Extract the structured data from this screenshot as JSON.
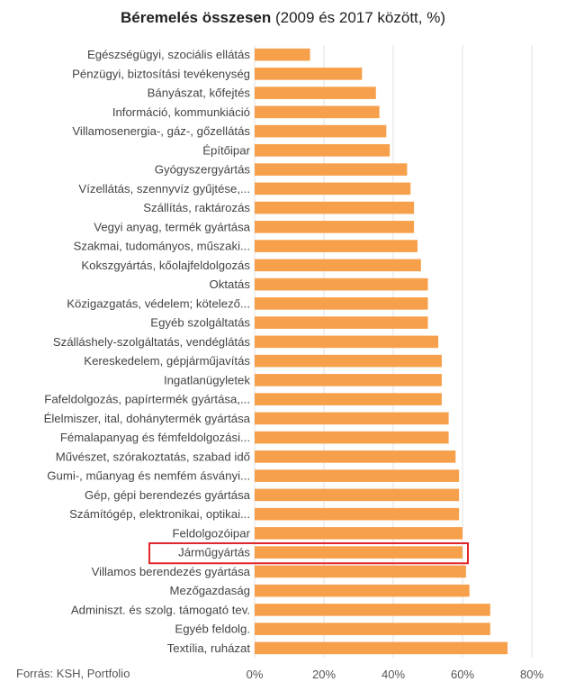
{
  "title_bold": "Béremelés összesen",
  "title_rest": " (2009 és 2017 között, %)",
  "source": "Forrás: KSH, Portfolio",
  "colors": {
    "bar": "#f7a04b",
    "highlight": "#e0262a",
    "grid": "#e2e2e2",
    "label": "#444444"
  },
  "chart_data": {
    "type": "bar",
    "orientation": "horizontal",
    "categories": [
      "Egészségügyi, szociális ellátás",
      "Pénzügyi, biztosítási tevékenység",
      "Bányászat, kőfejtés",
      "Információ, kommunkiáció",
      "Villamosenergia-, gáz-, gőzellátás",
      "Építőipar",
      "Gyógyszergyártás",
      "Vízellátás, szennyvíz gyűjtése,...",
      "Szállítás, raktározás",
      "Vegyi anyag, termék gyártása",
      "Szakmai, tudományos, műszaki...",
      "Kokszgyártás, kőolajfeldolgozás",
      "Oktatás",
      "Közigazgatás, védelem; kötelező...",
      "Egyéb szolgáltatás",
      "Szálláshely-szolgáltatás, vendéglátás",
      "Kereskedelem, gépjárműjavítás",
      "Ingatlanügyletek",
      "Fafeldolgozás, papírtermék gyártása,...",
      "Élelmiszer, ital, dohánytermék gyártása",
      "Fémalapanyag és fémfeldolgozási...",
      "Művészet, szórakoztatás, szabad idő",
      "Gumi-, műanyag és nemfém ásványi...",
      "Gép, gépi berendezés gyártása",
      "Számítógép, elektronikai, optikai...",
      "Feldolgozóipar",
      "Járműgyártás",
      "Villamos berendezés gyártása",
      "Mezőgazdaság",
      "Adminiszt. és szolg. támogató tev.",
      "Egyéb feldolg.",
      "Textília, ruházat"
    ],
    "values": [
      16,
      31,
      35,
      36,
      38,
      39,
      44,
      45,
      46,
      46,
      47,
      48,
      50,
      50,
      50,
      53,
      54,
      54,
      54,
      56,
      56,
      58,
      59,
      59,
      59,
      60,
      60,
      61,
      62,
      68,
      68,
      73
    ],
    "highlighted_category": "Járműgyártás",
    "xlim": [
      0,
      80
    ],
    "xticks": [
      "0%",
      "20%",
      "40%",
      "60%",
      "80%"
    ],
    "xtick_values": [
      0,
      20,
      40,
      60,
      80
    ],
    "grid": true,
    "legend": "none"
  }
}
